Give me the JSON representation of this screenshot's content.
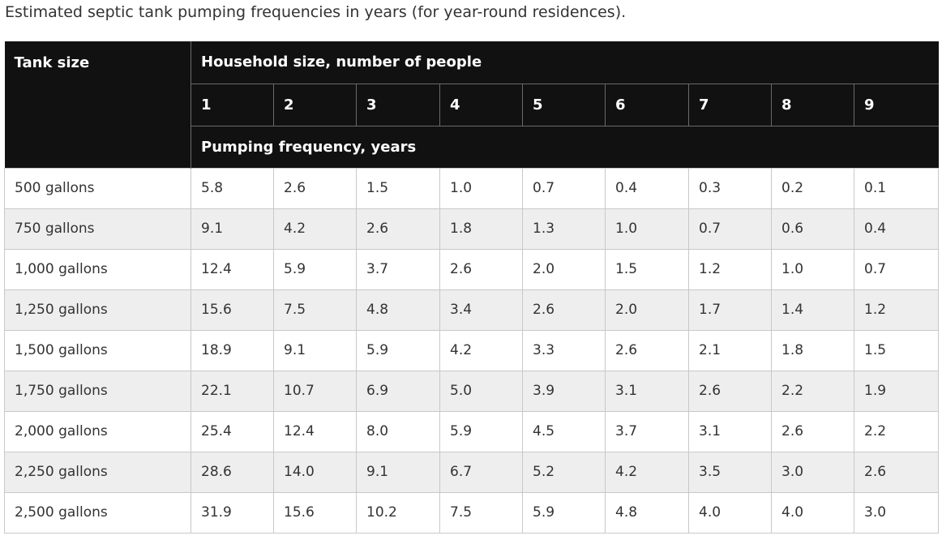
{
  "caption": "Estimated septic tank pumping frequencies in years (for year-round residences).",
  "table": {
    "corner_header": "Tank size",
    "group_header": "Household size, number of people",
    "household_sizes": [
      "1",
      "2",
      "3",
      "4",
      "5",
      "6",
      "7",
      "8",
      "9"
    ],
    "sub_header": "Pumping frequency, years",
    "rows": [
      {
        "tank": "500 gallons",
        "values": [
          "5.8",
          "2.6",
          "1.5",
          "1.0",
          "0.7",
          "0.4",
          "0.3",
          "0.2",
          "0.1"
        ]
      },
      {
        "tank": "750 gallons",
        "values": [
          "9.1",
          "4.2",
          "2.6",
          "1.8",
          "1.3",
          "1.0",
          "0.7",
          "0.6",
          "0.4"
        ]
      },
      {
        "tank": "1,000 gallons",
        "values": [
          "12.4",
          "5.9",
          "3.7",
          "2.6",
          "2.0",
          "1.5",
          "1.2",
          "1.0",
          "0.7"
        ]
      },
      {
        "tank": "1,250 gallons",
        "values": [
          "15.6",
          "7.5",
          "4.8",
          "3.4",
          "2.6",
          "2.0",
          "1.7",
          "1.4",
          "1.2"
        ]
      },
      {
        "tank": "1,500 gallons",
        "values": [
          "18.9",
          "9.1",
          "5.9",
          "4.2",
          "3.3",
          "2.6",
          "2.1",
          "1.8",
          "1.5"
        ]
      },
      {
        "tank": "1,750 gallons",
        "values": [
          "22.1",
          "10.7",
          "6.9",
          "5.0",
          "3.9",
          "3.1",
          "2.6",
          "2.2",
          "1.9"
        ]
      },
      {
        "tank": "2,000 gallons",
        "values": [
          "25.4",
          "12.4",
          "8.0",
          "5.9",
          "4.5",
          "3.7",
          "3.1",
          "2.6",
          "2.2"
        ]
      },
      {
        "tank": "2,250 gallons",
        "values": [
          "28.6",
          "14.0",
          "9.1",
          "6.7",
          "5.2",
          "4.2",
          "3.5",
          "3.0",
          "2.6"
        ]
      },
      {
        "tank": "2,500 gallons",
        "values": [
          "31.9",
          "15.6",
          "10.2",
          "7.5",
          "5.9",
          "4.8",
          "4.0",
          "4.0",
          "3.0"
        ]
      }
    ]
  }
}
